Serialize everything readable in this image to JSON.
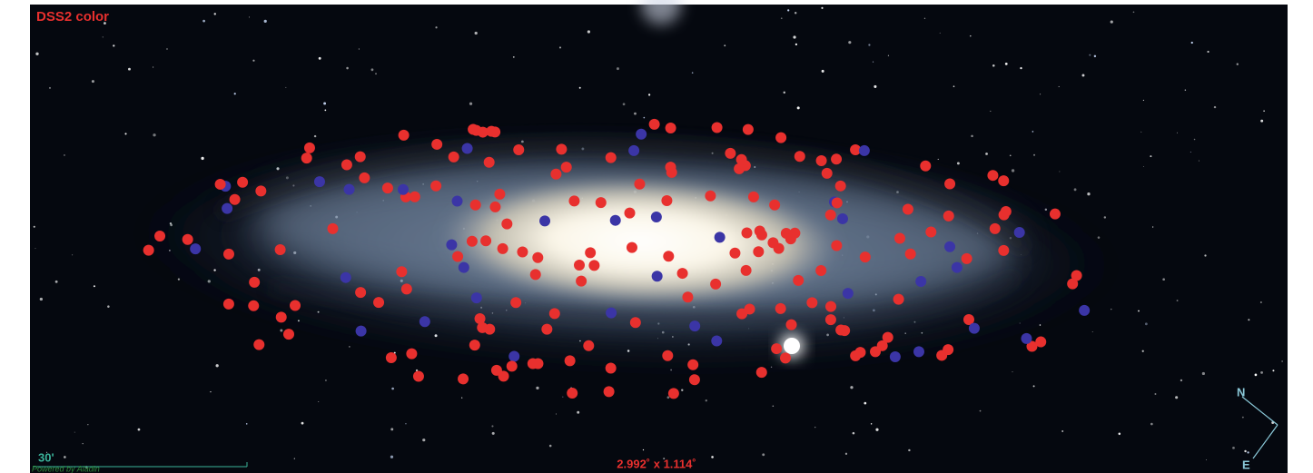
{
  "header": {
    "survey": "DSS2 color"
  },
  "scale": {
    "label": "30'",
    "credit": "Powered by Aladin"
  },
  "fov": "2.992˚ x 1.114˚",
  "compass": {
    "north": "N",
    "east": "E"
  }
}
